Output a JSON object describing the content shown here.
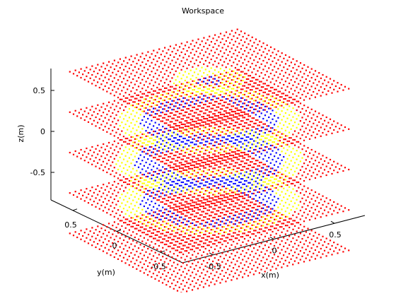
{
  "chart_data": {
    "type": "scatter",
    "title": "Workspace",
    "xlabel": "x(m)",
    "ylabel": "y(m)",
    "zlabel": "z(m)",
    "xlim": [
      -0.75,
      0.75
    ],
    "ylim": [
      -0.75,
      0.75
    ],
    "zlim": [
      -0.85,
      0.75
    ],
    "x_ticks": [
      -0.5,
      0,
      0.5
    ],
    "y_ticks": [
      -0.5,
      0,
      0.5
    ],
    "z_ticks": [
      -0.5,
      0,
      0.5
    ],
    "x_tick_labels": [
      "-0.5",
      "0",
      "0.5"
    ],
    "y_tick_labels": [
      "-0.5",
      "0",
      "0.5"
    ],
    "z_tick_labels": [
      "-0.5",
      "0",
      "0.5"
    ],
    "grid": false,
    "point_marker": "dot",
    "colors": {
      "red": "#ff0000",
      "yellow": "#ffff00",
      "blue": "#0000ff",
      "axis": "#000000",
      "background": "#ffffff"
    },
    "z_levels": [
      -0.8,
      -0.4,
      0.0,
      0.4,
      0.8
    ],
    "slices": [
      {
        "z": -0.8,
        "red_square_half_width": 0.75
      },
      {
        "z": -0.4,
        "red_square_half_width": 0.75,
        "yellow_radius": 0.68,
        "blue_radius": 0.52,
        "inner_red_half_width": 0.3
      },
      {
        "z": 0.0,
        "red_square_half_width": 0.75,
        "yellow_radius": 0.7,
        "blue_radius": 0.56,
        "inner_red_half_width": 0.32
      },
      {
        "z": 0.4,
        "red_square_half_width": 0.75,
        "yellow_radius": 0.68,
        "blue_radius": 0.52,
        "inner_red_half_width": 0.33
      },
      {
        "z": 0.8,
        "red_square_half_width": 0.75,
        "yellow_radius": 0.28,
        "blue_radius": 0.1
      }
    ]
  }
}
